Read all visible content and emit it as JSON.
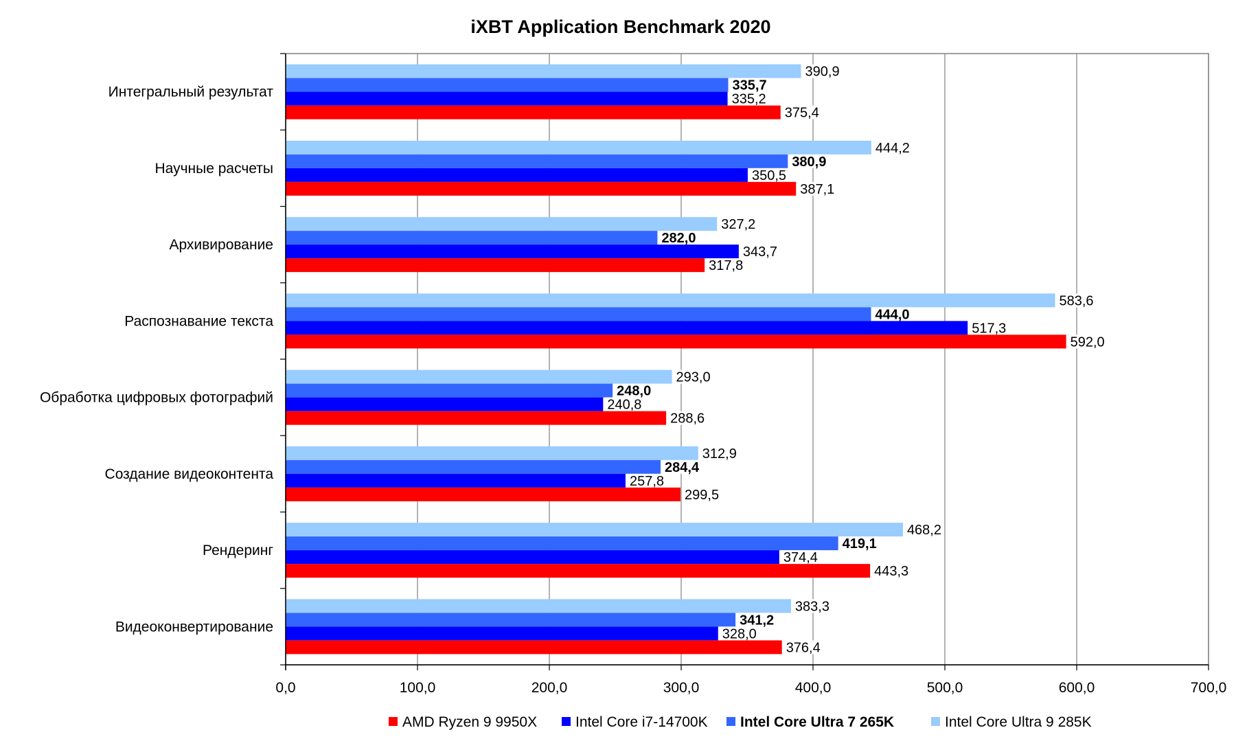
{
  "chart_data": {
    "type": "bar",
    "orientation": "horizontal",
    "title": "iXBT Application Benchmark 2020",
    "xlabel": "",
    "ylabel": "",
    "xlim": [
      0,
      700
    ],
    "x_ticks": [
      "0,0",
      "100,0",
      "200,0",
      "300,0",
      "400,0",
      "500,0",
      "600,0",
      "700,0"
    ],
    "grid": "vertical",
    "legend_position": "bottom",
    "categories": [
      "Интегральный результат",
      "Научные расчеты",
      "Архивирование",
      "Распознавание текста",
      "Обработка цифровых фотографий",
      "Создание видеоконтента",
      "Рендеринг",
      "Видеоконвертирование"
    ],
    "series": [
      {
        "name": "AMD Ryzen 9 9950X",
        "color": "#ff0000",
        "bold": false,
        "values": [
          375.4,
          387.1,
          317.8,
          592.0,
          288.6,
          299.5,
          443.3,
          376.4
        ],
        "labels": [
          "375,4",
          "387,1",
          "317,8",
          "592,0",
          "288,6",
          "299,5",
          "443,3",
          "376,4"
        ]
      },
      {
        "name": "Intel Core i7-14700K",
        "color": "#0000ff",
        "bold": false,
        "values": [
          335.2,
          350.5,
          343.7,
          517.3,
          240.8,
          257.8,
          374.4,
          328.0
        ],
        "labels": [
          "335,2",
          "350,5",
          "343,7",
          "517,3",
          "240,8",
          "257,8",
          "374,4",
          "328,0"
        ]
      },
      {
        "name": "Intel Core Ultra 7 265K",
        "color": "#3366ff",
        "bold": true,
        "values": [
          335.7,
          380.9,
          282.0,
          444.0,
          248.0,
          284.4,
          419.1,
          341.2
        ],
        "labels": [
          "335,7",
          "380,9",
          "282,0",
          "444,0",
          "248,0",
          "284,4",
          "419,1",
          "341,2"
        ]
      },
      {
        "name": "Intel Core Ultra 9 285K",
        "color": "#99ccff",
        "bold": false,
        "values": [
          390.9,
          444.2,
          327.2,
          583.6,
          293.0,
          312.9,
          468.2,
          383.3
        ],
        "labels": [
          "390,9",
          "444,2",
          "327,2",
          "583,6",
          "293,0",
          "312,9",
          "468,2",
          "383,3"
        ]
      }
    ]
  }
}
